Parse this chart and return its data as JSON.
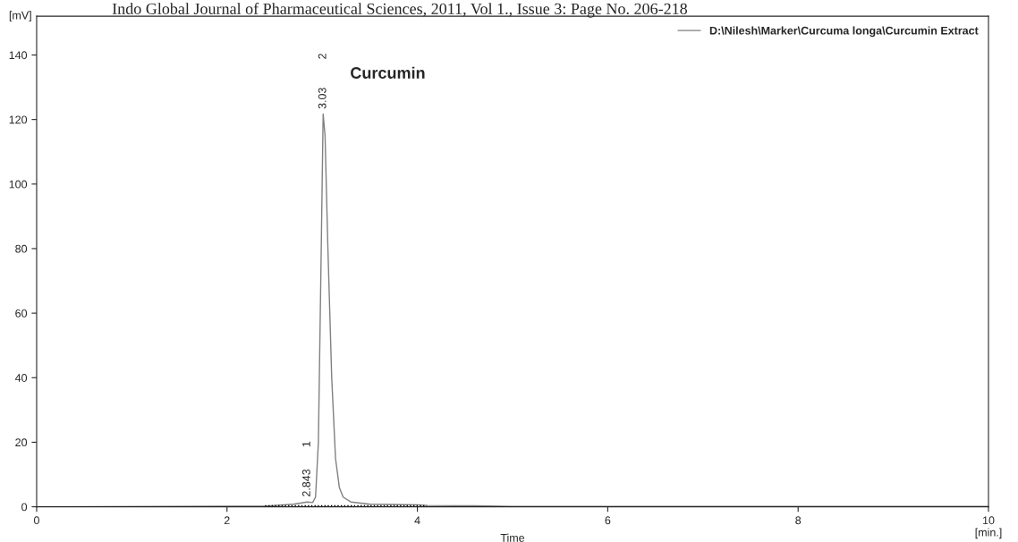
{
  "chart_data": {
    "type": "line",
    "title": "Indo Global Journal of Pharmaceutical Sciences, 2011, Vol 1., Issue 3: Page No. 206-218",
    "xlabel": "Time",
    "ylabel": "[mV]",
    "series": [
      {
        "name": "D:\\Nilesh\\Marker\\Curcuma longa\\Curcumin Extract",
        "color": "#808080",
        "x": [
          0,
          2.4,
          2.7,
          2.843,
          2.9,
          2.93,
          2.96,
          2.99,
          3.01,
          3.03,
          3.06,
          3.1,
          3.14,
          3.18,
          3.22,
          3.3,
          3.5,
          4.0,
          4.1,
          4.6,
          5,
          10
        ],
        "values": [
          0,
          0.2,
          0.8,
          1.5,
          1.3,
          3,
          20,
          80,
          121.7,
          115,
          80,
          40,
          15,
          6,
          3,
          1.5,
          0.8,
          0.6,
          0.4,
          0.3,
          0.1,
          0.1
        ]
      },
      {
        "color": "#000000",
        "line_style": "dotted",
        "x": [
          2.4,
          4.1
        ],
        "values": [
          0.3,
          0.3
        ]
      }
    ],
    "xlim": [
      0,
      10
    ],
    "ylim": [
      0,
      152
    ],
    "xticks": [
      0,
      2,
      4,
      6,
      8,
      {
        "value": 10,
        "label": "10\n[min.]"
      }
    ],
    "yticks": [
      0,
      20,
      40,
      60,
      80,
      100,
      120,
      140
    ],
    "grid": false,
    "legend": "top right",
    "annotations": [
      {
        "text": "2.843",
        "x": 2.843,
        "y": 1.5
      },
      "1",
      {
        "text": "3.03",
        "x": 3.01,
        "y": 121.7
      },
      "2",
      "Curcumin"
    ]
  }
}
